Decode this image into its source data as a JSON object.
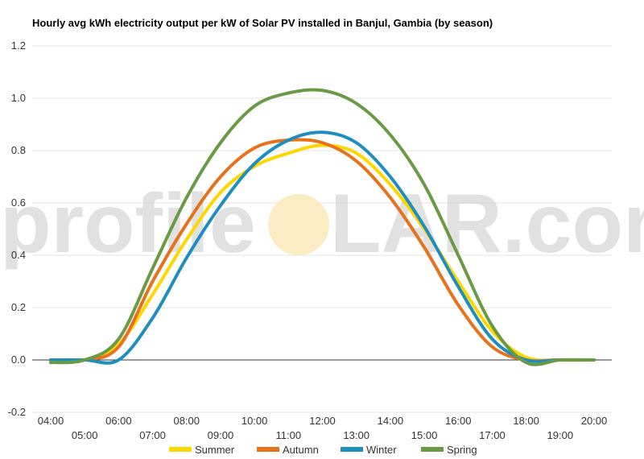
{
  "chart_data": {
    "type": "line",
    "title": "Hourly avg kWh electricity output per kW of Solar PV installed in Banjul, Gambia (by season)",
    "xlabel": "",
    "ylabel": "",
    "ylim": [
      -0.2,
      1.2
    ],
    "yticks": [
      "-0.2",
      "0.0",
      "0.2",
      "0.4",
      "0.6",
      "0.8",
      "1.0",
      "1.2"
    ],
    "x": [
      "04:00",
      "05:00",
      "06:00",
      "07:00",
      "08:00",
      "09:00",
      "10:00",
      "11:00",
      "12:00",
      "13:00",
      "14:00",
      "15:00",
      "16:00",
      "17:00",
      "18:00",
      "19:00",
      "20:00"
    ],
    "grid": true,
    "legend_position": "bottom",
    "series": [
      {
        "name": "Summer",
        "color": "#ffd700",
        "values": [
          0.0,
          0.0,
          0.06,
          0.25,
          0.46,
          0.64,
          0.74,
          0.79,
          0.82,
          0.79,
          0.67,
          0.5,
          0.3,
          0.11,
          0.01,
          0.0,
          0.0
        ]
      },
      {
        "name": "Autumn",
        "color": "#e8711c",
        "values": [
          0.0,
          0.0,
          0.05,
          0.3,
          0.52,
          0.7,
          0.81,
          0.84,
          0.83,
          0.76,
          0.62,
          0.43,
          0.21,
          0.05,
          0.0,
          0.0,
          0.0
        ]
      },
      {
        "name": "Winter",
        "color": "#1f8ebf",
        "values": [
          0.0,
          0.0,
          0.0,
          0.16,
          0.39,
          0.59,
          0.75,
          0.84,
          0.87,
          0.83,
          0.7,
          0.51,
          0.28,
          0.08,
          0.0,
          0.0,
          0.0
        ]
      },
      {
        "name": "Spring",
        "color": "#6b9a47",
        "values": [
          -0.01,
          0.0,
          0.08,
          0.35,
          0.62,
          0.83,
          0.97,
          1.02,
          1.03,
          0.98,
          0.86,
          0.67,
          0.4,
          0.13,
          -0.01,
          0.0,
          0.0
        ]
      }
    ]
  },
  "watermark": {
    "left_text": "profile",
    "right_text": "LAR.com",
    "sun_color": "#fbe9b8"
  }
}
